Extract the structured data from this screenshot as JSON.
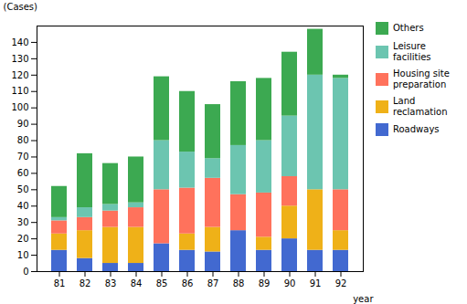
{
  "chart_data": {
    "type": "bar",
    "stacked": true,
    "categories": [
      "81",
      "82",
      "83",
      "84",
      "85",
      "86",
      "87",
      "88",
      "89",
      "90",
      "91",
      "92"
    ],
    "series": [
      {
        "name": "Roadways",
        "values": [
          13,
          8,
          5,
          5,
          17,
          13,
          12,
          25,
          13,
          20,
          13,
          13
        ]
      },
      {
        "name": "Land\nreclamation",
        "values": [
          10,
          17,
          22,
          22,
          0,
          10,
          15,
          0,
          8,
          20,
          37,
          12
        ]
      },
      {
        "name": "Housing site\npreparation",
        "values": [
          8,
          8,
          10,
          12,
          33,
          28,
          30,
          22,
          27,
          18,
          0,
          25
        ]
      },
      {
        "name": "Leisure\nfacilities",
        "values": [
          2,
          6,
          4,
          3,
          30,
          22,
          12,
          30,
          32,
          37,
          70,
          68
        ]
      },
      {
        "name": "Others",
        "values": [
          19,
          33,
          25,
          28,
          39,
          37,
          33,
          39,
          38,
          39,
          28,
          2
        ]
      }
    ],
    "xlabel": "year",
    "ylabel": "(Cases)",
    "ylim": [
      0,
      150
    ],
    "yticks": [
      0,
      10,
      20,
      30,
      40,
      50,
      60,
      70,
      80,
      90,
      100,
      110,
      120,
      130,
      140
    ],
    "grid": false,
    "legend": "upper right"
  }
}
